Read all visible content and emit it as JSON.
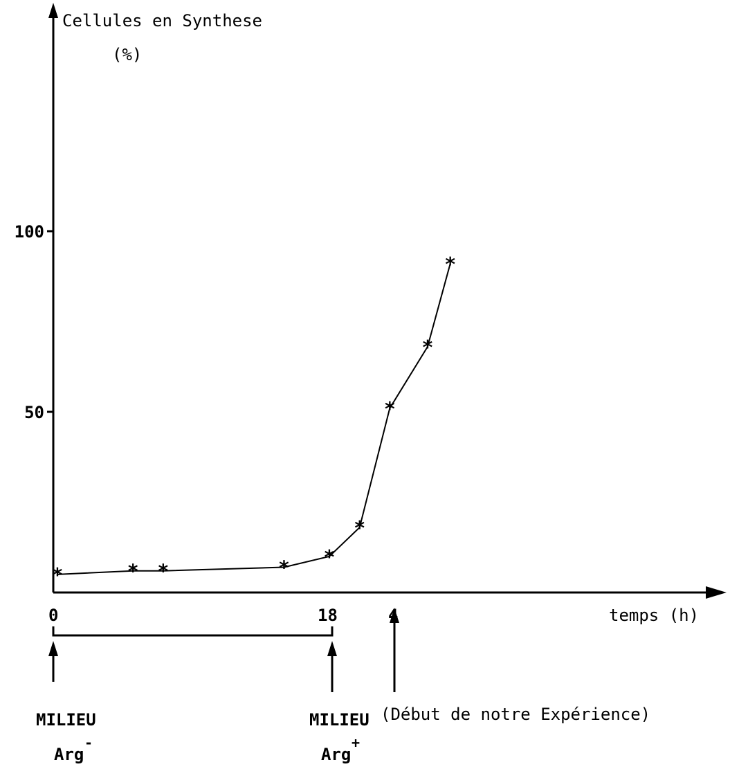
{
  "chart_data": {
    "type": "line",
    "ylabel": "Cellules en Synthese",
    "ylabel_unit": "(%)",
    "xlabel": "temps (h)",
    "y_ticks": [
      "50",
      "100"
    ],
    "x_ticks": [
      "0",
      "18",
      "4"
    ],
    "ylim": [
      0,
      100
    ],
    "grid": false,
    "legend": "none",
    "series": [
      {
        "x": [
          0,
          5,
          7,
          15,
          18,
          20,
          22,
          24.5,
          26
        ],
        "y": [
          5,
          6,
          6,
          7,
          10,
          18,
          51,
          68,
          91
        ]
      }
    ],
    "annotations": {
      "medium_minus_label": "MILIEU",
      "medium_minus_sub": "Arg",
      "medium_minus_sup": "-",
      "medium_plus_label": "MILIEU",
      "medium_plus_sub": "Arg",
      "medium_plus_sup": "+",
      "experiment_start": "(Début de notre Expérience)"
    }
  }
}
